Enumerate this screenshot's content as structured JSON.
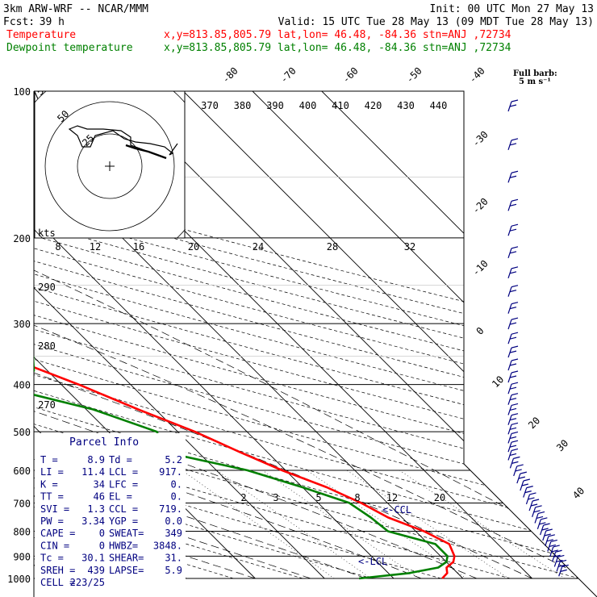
{
  "header": {
    "title": "3km ARW-WRF -- NCAR/MMM",
    "init": "Init: 00 UTC Mon 27 May 13",
    "fcst_label": "Fcst:",
    "fcst_value": "39 h",
    "valid": "Valid: 15 UTC Tue 28 May 13 (09 MDT Tue 28 May 13)",
    "temperature_label": "Temperature",
    "dewpoint_label": "Dewpoint temperature",
    "temperature_location": "x,y=813.85,805.79   lat,lon= 46.48, -84.36  stn=ANJ ,72734",
    "dewpoint_location": "x,y=813.85,805.79   lat,lon= 46.48, -84.36  stn=ANJ ,72734",
    "full_barb_label": "Full barb:",
    "full_barb_value": "5 m s⁻¹"
  },
  "colors": {
    "temperature": "#ff0000",
    "dewpoint": "#008000",
    "parcel_text": "#000080",
    "isotherm": "#000000",
    "hodograph": "#000000"
  },
  "chart_data": {
    "type": "skew-t",
    "pressure_levels": [
      {
        "p": 100,
        "label": "100"
      },
      {
        "p": 200,
        "label": "200"
      },
      {
        "p": 300,
        "label": "300"
      },
      {
        "p": 400,
        "label": "400"
      },
      {
        "p": 500,
        "label": "500"
      },
      {
        "p": 600,
        "label": "600"
      },
      {
        "p": 700,
        "label": "700"
      },
      {
        "p": 800,
        "label": "800"
      },
      {
        "p": 900,
        "label": "900"
      },
      {
        "p": 1000,
        "label": "1000"
      }
    ],
    "isotherm_labels": [
      "-80",
      "-70",
      "-60",
      "-50",
      "-40",
      "-30",
      "-20",
      "-10",
      "0",
      "10",
      "20",
      "30",
      "40"
    ],
    "theta_labels_top": [
      "370",
      "380",
      "390",
      "400",
      "410",
      "420",
      "430",
      "440"
    ],
    "theta_labels_left": [
      "290",
      "280",
      "270"
    ],
    "mixing_ratio_labels_upper": [
      "8",
      "12",
      "16",
      "20",
      "24",
      "28",
      "32"
    ],
    "mixing_ratio_labels_lower": [
      "2",
      "3",
      "5",
      "8",
      "12",
      "20"
    ],
    "lcl_labels": [
      "<-CCL",
      "<-LCL"
    ],
    "temperature_profile": [
      {
        "p": 1000,
        "t": 7.0
      },
      {
        "p": 975,
        "t": 8.5
      },
      {
        "p": 950,
        "t": 9.2
      },
      {
        "p": 925,
        "t": 11.0
      },
      {
        "p": 900,
        "t": 12.0
      },
      {
        "p": 850,
        "t": 13.0
      },
      {
        "p": 800,
        "t": 11.2
      },
      {
        "p": 750,
        "t": 8.0
      },
      {
        "p": 700,
        "t": 6.2
      },
      {
        "p": 650,
        "t": 3.5
      },
      {
        "p": 600,
        "t": -0.5
      },
      {
        "p": 550,
        "t": -4.0
      },
      {
        "p": 500,
        "t": -7.5
      },
      {
        "p": 450,
        "t": -12.5
      },
      {
        "p": 400,
        "t": -17.5
      },
      {
        "p": 350,
        "t": -24.0
      },
      {
        "p": 300,
        "t": -32.5
      },
      {
        "p": 250,
        "t": -42.0
      },
      {
        "p": 200,
        "t": -52.5
      },
      {
        "p": 175,
        "t": -55.0
      },
      {
        "p": 150,
        "t": -57.0
      },
      {
        "p": 125,
        "t": -57.0
      },
      {
        "p": 100,
        "t": -64.0
      }
    ],
    "dewpoint_profile": [
      {
        "p": 1000,
        "td": -5.0
      },
      {
        "p": 975,
        "td": 3.0
      },
      {
        "p": 950,
        "td": 8.0
      },
      {
        "p": 925,
        "td": 10.0
      },
      {
        "p": 900,
        "td": 11.0
      },
      {
        "p": 850,
        "td": 11.0
      },
      {
        "p": 800,
        "td": 6.0
      },
      {
        "p": 750,
        "td": 5.5
      },
      {
        "p": 700,
        "td": 4.5
      },
      {
        "p": 650,
        "td": 0.0
      },
      {
        "p": 600,
        "td": -5.5
      },
      {
        "p": 550,
        "td": -15.0
      },
      {
        "p": 500,
        "td": -13.0
      },
      {
        "p": 450,
        "td": -19.0
      },
      {
        "p": 400,
        "td": -30.0
      },
      {
        "p": 375,
        "td": -22.0
      },
      {
        "p": 350,
        "td": -20.0
      },
      {
        "p": 300,
        "td": -32.0
      },
      {
        "p": 250,
        "td": -44.0
      },
      {
        "p": 200,
        "td": -57.0
      },
      {
        "p": 175,
        "td": -59.0
      },
      {
        "p": 150,
        "td": -61.0
      },
      {
        "p": 125,
        "td": -63.0
      },
      {
        "p": 100,
        "td": -73.0
      }
    ],
    "hodograph_rings": [
      "25",
      "50",
      "75"
    ],
    "hodograph_units": "kts",
    "parcel_info": {
      "title": "Parcel Info",
      "rows": [
        [
          "T  =",
          "8.9",
          "Td =",
          "5.2"
        ],
        [
          "LI =",
          "11.4",
          "LCL =",
          "917."
        ],
        [
          "K  =",
          "34",
          "LFC =",
          "0."
        ],
        [
          "TT =",
          "46",
          "EL  =",
          "0."
        ],
        [
          "SVI =",
          "1.3",
          "CCL =",
          "719."
        ],
        [
          "PW =",
          "3.34",
          "YGP =",
          "0.0"
        ],
        [
          "CAPE =",
          "0",
          "SWEAT=",
          "349"
        ],
        [
          "CIN =",
          "0",
          "HWBZ=",
          "3848."
        ],
        [
          "Tc =",
          "30.1",
          "SHEAR=",
          "31."
        ],
        [
          "SREH =",
          "439",
          "LAPSE=",
          "5.9"
        ],
        [
          "CELL =",
          "223/25",
          "",
          ""
        ]
      ]
    }
  }
}
